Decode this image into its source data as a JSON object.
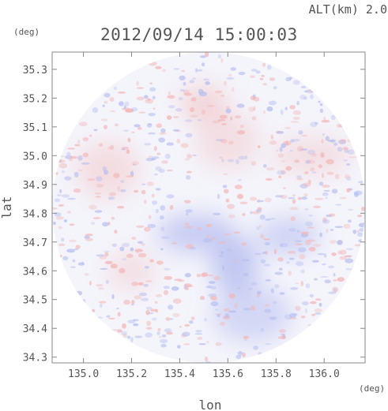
{
  "header": {
    "altitude_label": "ALT(km) 2.0",
    "timestamp": "2012/09/14 15:00:03"
  },
  "colors": {
    "positive": "#f2b8b8",
    "negative": "#b8bff0",
    "neutral": "#f4f4fb",
    "axis": "#888888",
    "text": "#555555"
  },
  "chart_data": {
    "type": "heatmap",
    "title": "2012/09/14 15:00:03",
    "subtitle": "ALT(km) 2.0",
    "xlabel": "lon",
    "ylabel": "lat",
    "x_unit": "(deg)",
    "y_unit": "(deg)",
    "xlim": [
      134.87,
      136.17
    ],
    "ylim": [
      34.28,
      35.36
    ],
    "x_ticks": [
      135.0,
      135.2,
      135.4,
      135.6,
      135.8,
      136.0
    ],
    "x_tick_labels": [
      "135.0",
      "135.2",
      "135.4",
      "135.6",
      "135.8",
      "136.0"
    ],
    "y_ticks": [
      34.3,
      34.4,
      34.5,
      34.6,
      34.7,
      34.8,
      34.9,
      35.0,
      35.1,
      35.2,
      35.3
    ],
    "y_tick_labels": [
      "34.3",
      "34.4",
      "34.5",
      "34.6",
      "34.7",
      "34.8",
      "34.9",
      "35.0",
      "35.1",
      "35.2",
      "35.3"
    ],
    "grid": false,
    "colorbar": false,
    "domain": "circle",
    "circle_center": [
      135.52,
      34.82
    ],
    "circle_radius_lon": 0.65,
    "circle_radius_lat": 0.54,
    "regions": [
      {
        "lon": 135.5,
        "lat": 35.18,
        "value": 0.35
      },
      {
        "lon": 135.6,
        "lat": 35.05,
        "value": 0.2
      },
      {
        "lon": 135.47,
        "lat": 34.73,
        "value": -0.6
      },
      {
        "lon": 135.63,
        "lat": 34.62,
        "value": -0.7
      },
      {
        "lon": 135.85,
        "lat": 34.72,
        "value": -0.45
      },
      {
        "lon": 135.7,
        "lat": 34.45,
        "value": -0.4
      },
      {
        "lon": 135.2,
        "lat": 34.6,
        "value": 0.2
      },
      {
        "lon": 135.1,
        "lat": 34.95,
        "value": 0.25
      },
      {
        "lon": 135.95,
        "lat": 35.0,
        "value": 0.2
      }
    ]
  }
}
